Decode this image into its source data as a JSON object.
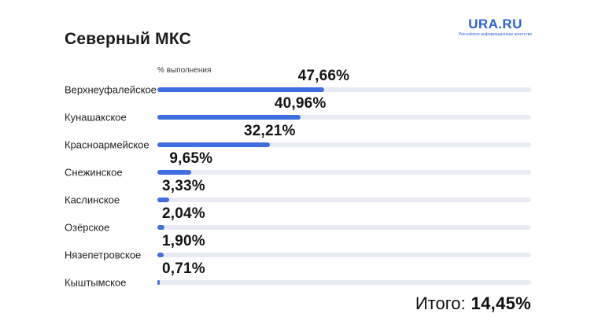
{
  "page": {
    "background": "#ffffff"
  },
  "header": {
    "title": "Северный МКС",
    "logo": {
      "text": "URA.RU",
      "subtitle": "Российское информационное агентство",
      "color": "#2e63d8"
    }
  },
  "chart_data": {
    "type": "bar",
    "orientation": "horizontal",
    "title": "Северный МКС",
    "axis_note": "% выполнения",
    "categories": [
      "Верхнеуфалейское",
      "Кунашакское",
      "Красноармейское",
      "Снежинское",
      "Каслинское",
      "Озёрское",
      "Нязепетровское",
      "Кыштымское"
    ],
    "values": [
      47.66,
      40.96,
      32.21,
      9.65,
      3.33,
      2.04,
      1.9,
      0.71
    ],
    "value_labels": [
      "47,66%",
      "40,96%",
      "32,21%",
      "9,65%",
      "3,33%",
      "2,04%",
      "1,90%",
      "0,71%"
    ],
    "xlim": [
      0,
      107
    ],
    "grid": false,
    "legend": false,
    "bar_color": "#3f6ee0",
    "track_color": "#e9ebf4"
  },
  "total": {
    "label": "Итого:",
    "value": "14,45%"
  }
}
